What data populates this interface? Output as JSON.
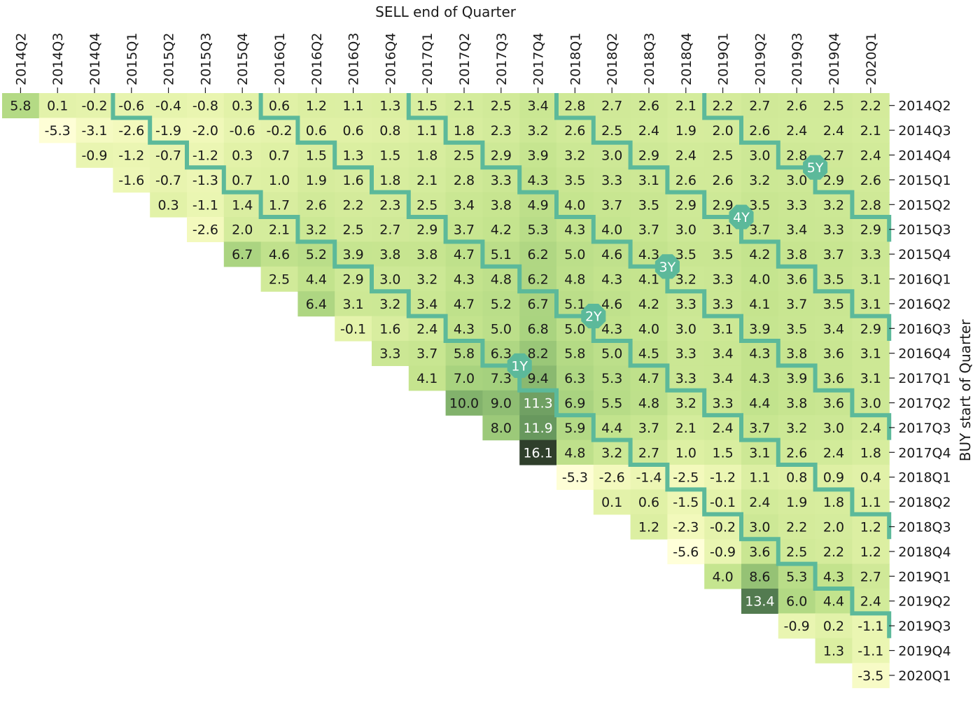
{
  "chart_data": {
    "type": "heatmap",
    "title": "",
    "xlabel": "SELL end of Quarter",
    "ylabel": "BUY start of Quarter",
    "x_categories": [
      "2014Q2",
      "2014Q3",
      "2014Q4",
      "2015Q1",
      "2015Q2",
      "2015Q3",
      "2015Q4",
      "2016Q1",
      "2016Q2",
      "2016Q3",
      "2016Q4",
      "2017Q1",
      "2017Q2",
      "2017Q3",
      "2017Q4",
      "2018Q1",
      "2018Q2",
      "2018Q3",
      "2018Q4",
      "2019Q1",
      "2019Q2",
      "2019Q3",
      "2019Q4",
      "2020Q1"
    ],
    "y_categories": [
      "2014Q2",
      "2014Q3",
      "2014Q4",
      "2015Q1",
      "2015Q2",
      "2015Q3",
      "2015Q4",
      "2016Q1",
      "2016Q2",
      "2016Q3",
      "2016Q4",
      "2017Q1",
      "2017Q2",
      "2017Q3",
      "2017Q4",
      "2018Q1",
      "2018Q2",
      "2018Q3",
      "2018Q4",
      "2019Q1",
      "2019Q2",
      "2019Q3",
      "2019Q4",
      "2020Q1"
    ],
    "values": [
      [
        5.8,
        0.1,
        -0.2,
        -0.6,
        -0.4,
        -0.8,
        0.3,
        0.6,
        1.2,
        1.1,
        1.3,
        1.5,
        2.1,
        2.5,
        3.4,
        2.8,
        2.7,
        2.6,
        2.1,
        2.2,
        2.7,
        2.6,
        2.5,
        2.2
      ],
      [
        null,
        -5.3,
        -3.1,
        -2.6,
        -1.9,
        -2.0,
        -0.6,
        -0.2,
        0.6,
        0.6,
        0.8,
        1.1,
        1.8,
        2.3,
        3.2,
        2.6,
        2.5,
        2.4,
        1.9,
        2.0,
        2.6,
        2.4,
        2.4,
        2.1
      ],
      [
        null,
        null,
        -0.9,
        -1.2,
        -0.7,
        -1.2,
        0.3,
        0.7,
        1.5,
        1.3,
        1.5,
        1.8,
        2.5,
        2.9,
        3.9,
        3.2,
        3.0,
        2.9,
        2.4,
        2.5,
        3.0,
        2.8,
        2.7,
        2.4
      ],
      [
        null,
        null,
        null,
        -1.6,
        -0.7,
        -1.3,
        0.7,
        1.0,
        1.9,
        1.6,
        1.8,
        2.1,
        2.8,
        3.3,
        4.3,
        3.5,
        3.3,
        3.1,
        2.6,
        2.6,
        3.2,
        3.0,
        2.9,
        2.6
      ],
      [
        null,
        null,
        null,
        null,
        0.3,
        -1.1,
        1.4,
        1.7,
        2.6,
        2.2,
        2.3,
        2.5,
        3.4,
        3.8,
        4.9,
        4.0,
        3.7,
        3.5,
        2.9,
        2.9,
        3.5,
        3.3,
        3.2,
        2.8
      ],
      [
        null,
        null,
        null,
        null,
        null,
        -2.6,
        2.0,
        2.1,
        3.2,
        2.5,
        2.7,
        2.9,
        3.7,
        4.2,
        5.3,
        4.3,
        4.0,
        3.7,
        3.0,
        3.1,
        3.7,
        3.4,
        3.3,
        2.9
      ],
      [
        null,
        null,
        null,
        null,
        null,
        null,
        6.7,
        4.6,
        5.2,
        3.9,
        3.8,
        3.8,
        4.7,
        5.1,
        6.2,
        5.0,
        4.6,
        4.3,
        3.5,
        3.5,
        4.2,
        3.8,
        3.7,
        3.3
      ],
      [
        null,
        null,
        null,
        null,
        null,
        null,
        null,
        2.5,
        4.4,
        2.9,
        3.0,
        3.2,
        4.3,
        4.8,
        6.2,
        4.8,
        4.3,
        4.1,
        3.2,
        3.3,
        4.0,
        3.6,
        3.5,
        3.1
      ],
      [
        null,
        null,
        null,
        null,
        null,
        null,
        null,
        null,
        6.4,
        3.1,
        3.2,
        3.4,
        4.7,
        5.2,
        6.7,
        5.1,
        4.6,
        4.2,
        3.3,
        3.3,
        4.1,
        3.7,
        3.5,
        3.1
      ],
      [
        null,
        null,
        null,
        null,
        null,
        null,
        null,
        null,
        null,
        -0.1,
        1.6,
        2.4,
        4.3,
        5.0,
        6.8,
        5.0,
        4.3,
        4.0,
        3.0,
        3.1,
        3.9,
        3.5,
        3.4,
        2.9
      ],
      [
        null,
        null,
        null,
        null,
        null,
        null,
        null,
        null,
        null,
        null,
        3.3,
        3.7,
        5.8,
        6.3,
        8.2,
        5.8,
        5.0,
        4.5,
        3.3,
        3.4,
        4.3,
        3.8,
        3.6,
        3.1
      ],
      [
        null,
        null,
        null,
        null,
        null,
        null,
        null,
        null,
        null,
        null,
        null,
        4.1,
        7.0,
        7.3,
        9.4,
        6.3,
        5.3,
        4.7,
        3.3,
        3.4,
        4.3,
        3.9,
        3.6,
        3.1
      ],
      [
        null,
        null,
        null,
        null,
        null,
        null,
        null,
        null,
        null,
        null,
        null,
        null,
        10.0,
        9.0,
        11.3,
        6.9,
        5.5,
        4.8,
        3.2,
        3.3,
        4.4,
        3.8,
        3.6,
        3.0
      ],
      [
        null,
        null,
        null,
        null,
        null,
        null,
        null,
        null,
        null,
        null,
        null,
        null,
        null,
        8.0,
        11.9,
        5.9,
        4.4,
        3.7,
        2.1,
        2.4,
        3.7,
        3.2,
        3.0,
        2.4
      ],
      [
        null,
        null,
        null,
        null,
        null,
        null,
        null,
        null,
        null,
        null,
        null,
        null,
        null,
        null,
        16.1,
        4.8,
        3.2,
        2.7,
        1.0,
        1.5,
        3.1,
        2.6,
        2.4,
        1.8
      ],
      [
        null,
        null,
        null,
        null,
        null,
        null,
        null,
        null,
        null,
        null,
        null,
        null,
        null,
        null,
        null,
        -5.3,
        -2.6,
        -1.4,
        -2.5,
        -1.2,
        1.1,
        0.8,
        0.9,
        0.4
      ],
      [
        null,
        null,
        null,
        null,
        null,
        null,
        null,
        null,
        null,
        null,
        null,
        null,
        null,
        null,
        null,
        null,
        0.1,
        0.6,
        -1.5,
        -0.1,
        2.4,
        1.9,
        1.8,
        1.1
      ],
      [
        null,
        null,
        null,
        null,
        null,
        null,
        null,
        null,
        null,
        null,
        null,
        null,
        null,
        null,
        null,
        null,
        null,
        1.2,
        -2.3,
        -0.2,
        3.0,
        2.2,
        2.0,
        1.2
      ],
      [
        null,
        null,
        null,
        null,
        null,
        null,
        null,
        null,
        null,
        null,
        null,
        null,
        null,
        null,
        null,
        null,
        null,
        null,
        -5.6,
        -0.9,
        3.6,
        2.5,
        2.2,
        1.2
      ],
      [
        null,
        null,
        null,
        null,
        null,
        null,
        null,
        null,
        null,
        null,
        null,
        null,
        null,
        null,
        null,
        null,
        null,
        null,
        null,
        4.0,
        8.6,
        5.3,
        4.3,
        2.7
      ],
      [
        null,
        null,
        null,
        null,
        null,
        null,
        null,
        null,
        null,
        null,
        null,
        null,
        null,
        null,
        null,
        null,
        null,
        null,
        null,
        null,
        13.4,
        6.0,
        4.4,
        2.4
      ],
      [
        null,
        null,
        null,
        null,
        null,
        null,
        null,
        null,
        null,
        null,
        null,
        null,
        null,
        null,
        null,
        null,
        null,
        null,
        null,
        null,
        null,
        -0.9,
        0.2,
        -1.1
      ],
      [
        null,
        null,
        null,
        null,
        null,
        null,
        null,
        null,
        null,
        null,
        null,
        null,
        null,
        null,
        null,
        null,
        null,
        null,
        null,
        null,
        null,
        null,
        1.3,
        -1.1
      ],
      [
        null,
        null,
        null,
        null,
        null,
        null,
        null,
        null,
        null,
        null,
        null,
        null,
        null,
        null,
        null,
        null,
        null,
        null,
        null,
        null,
        null,
        null,
        null,
        -3.5
      ]
    ],
    "holding_period_boundaries": [
      {
        "label": "1Y",
        "years": 1
      },
      {
        "label": "2Y",
        "years": 2
      },
      {
        "label": "3Y",
        "years": 3
      },
      {
        "label": "4Y",
        "years": 4
      },
      {
        "label": "5Y",
        "years": 5
      }
    ],
    "colors": {
      "boundary": "#5cb99a",
      "badge": "#5cb99a",
      "colormap_low": "#ffffd9",
      "colormap_high": "#2f3f2b"
    },
    "value_range": [
      -5.6,
      16.1
    ],
    "grid": false,
    "legend": "none"
  }
}
